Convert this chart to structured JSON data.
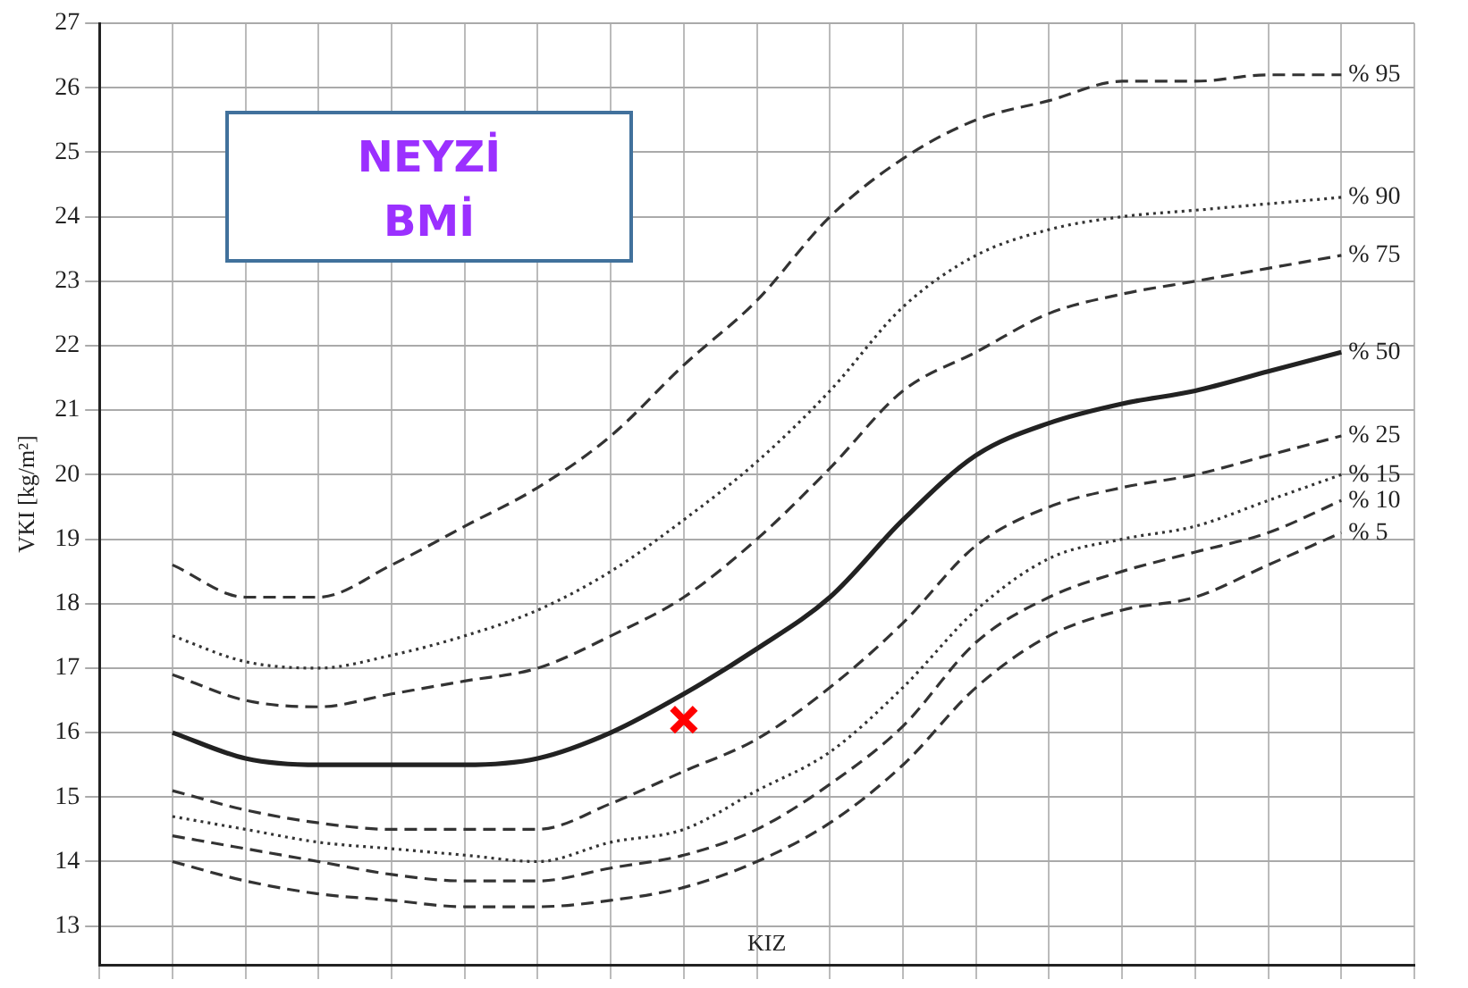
{
  "chart_data": {
    "type": "line",
    "ylabel": "VKI [kg/m²]",
    "categories": [
      null,
      null,
      null,
      null,
      null,
      null,
      null,
      null,
      null,
      null,
      null,
      null,
      null,
      null,
      null,
      null,
      null,
      null,
      null
    ],
    "series": [
      {
        "name": "% 95",
        "color": "#333333",
        "line_style": "dashed",
        "values": [
          null,
          18.6,
          18.1,
          18.1,
          18.6,
          19.2,
          19.8,
          20.6,
          21.7,
          22.7,
          24.0,
          24.9,
          25.5,
          25.8,
          26.1,
          26.1,
          26.2,
          26.2,
          null
        ]
      },
      {
        "name": "% 90",
        "color": "#333333",
        "line_style": "dotted",
        "values": [
          null,
          17.5,
          17.1,
          17.0,
          17.2,
          17.5,
          17.9,
          18.5,
          19.3,
          20.2,
          21.3,
          22.6,
          23.4,
          23.8,
          24.0,
          24.1,
          24.2,
          24.3,
          null
        ]
      },
      {
        "name": "% 75",
        "color": "#333333",
        "line_style": "dashed",
        "values": [
          null,
          16.9,
          16.5,
          16.4,
          16.6,
          16.8,
          17.0,
          17.5,
          18.1,
          19.0,
          20.1,
          21.3,
          21.9,
          22.5,
          22.8,
          23.0,
          23.2,
          23.4,
          null
        ]
      },
      {
        "name": "% 50",
        "color": "#222222",
        "line_style": "solid",
        "values": [
          null,
          16.0,
          15.6,
          15.5,
          15.5,
          15.5,
          15.6,
          16.0,
          16.6,
          17.3,
          18.1,
          19.3,
          20.3,
          20.8,
          21.1,
          21.3,
          21.6,
          21.9,
          null
        ]
      },
      {
        "name": "% 25",
        "color": "#333333",
        "line_style": "dashed",
        "values": [
          null,
          15.1,
          14.8,
          14.6,
          14.5,
          14.5,
          14.5,
          14.9,
          15.4,
          15.9,
          16.7,
          17.7,
          18.9,
          19.5,
          19.8,
          20.0,
          20.3,
          20.6,
          null
        ]
      },
      {
        "name": "% 15",
        "color": "#333333",
        "line_style": "dotted",
        "values": [
          null,
          14.7,
          14.5,
          14.3,
          14.2,
          14.1,
          14.0,
          14.3,
          14.5,
          15.1,
          15.7,
          16.7,
          17.9,
          18.7,
          19.0,
          19.2,
          19.6,
          20.0,
          null
        ]
      },
      {
        "name": "% 10",
        "color": "#333333",
        "line_style": "dashed",
        "values": [
          null,
          14.4,
          14.2,
          14.0,
          13.8,
          13.7,
          13.7,
          13.9,
          14.1,
          14.5,
          15.2,
          16.1,
          17.4,
          18.1,
          18.5,
          18.8,
          19.1,
          19.6,
          null
        ]
      },
      {
        "name": "% 5",
        "color": "#333333",
        "line_style": "dashed",
        "values": [
          null,
          14.0,
          13.7,
          13.5,
          13.4,
          13.3,
          13.3,
          13.4,
          13.6,
          14.0,
          14.6,
          15.5,
          16.7,
          17.5,
          17.9,
          18.1,
          18.6,
          19.1,
          null
        ]
      },
      {
        "type": "scatter",
        "marker": "cross",
        "color": "#ff0000",
        "values": [
          null,
          null,
          null,
          null,
          null,
          null,
          null,
          null,
          16.2,
          null,
          null,
          null,
          null,
          null,
          null,
          null,
          null,
          null,
          null
        ]
      }
    ],
    "ylim": [
      12.4,
      27
    ],
    "yticks": [
      13,
      14,
      15,
      16,
      17,
      18,
      19,
      20,
      21,
      22,
      23,
      24,
      25,
      26,
      27
    ],
    "grid": true,
    "legend": false,
    "tick_labels": "y",
    "annotations": [
      "NEYZİ\nBMİ",
      "KIZ"
    ]
  }
}
